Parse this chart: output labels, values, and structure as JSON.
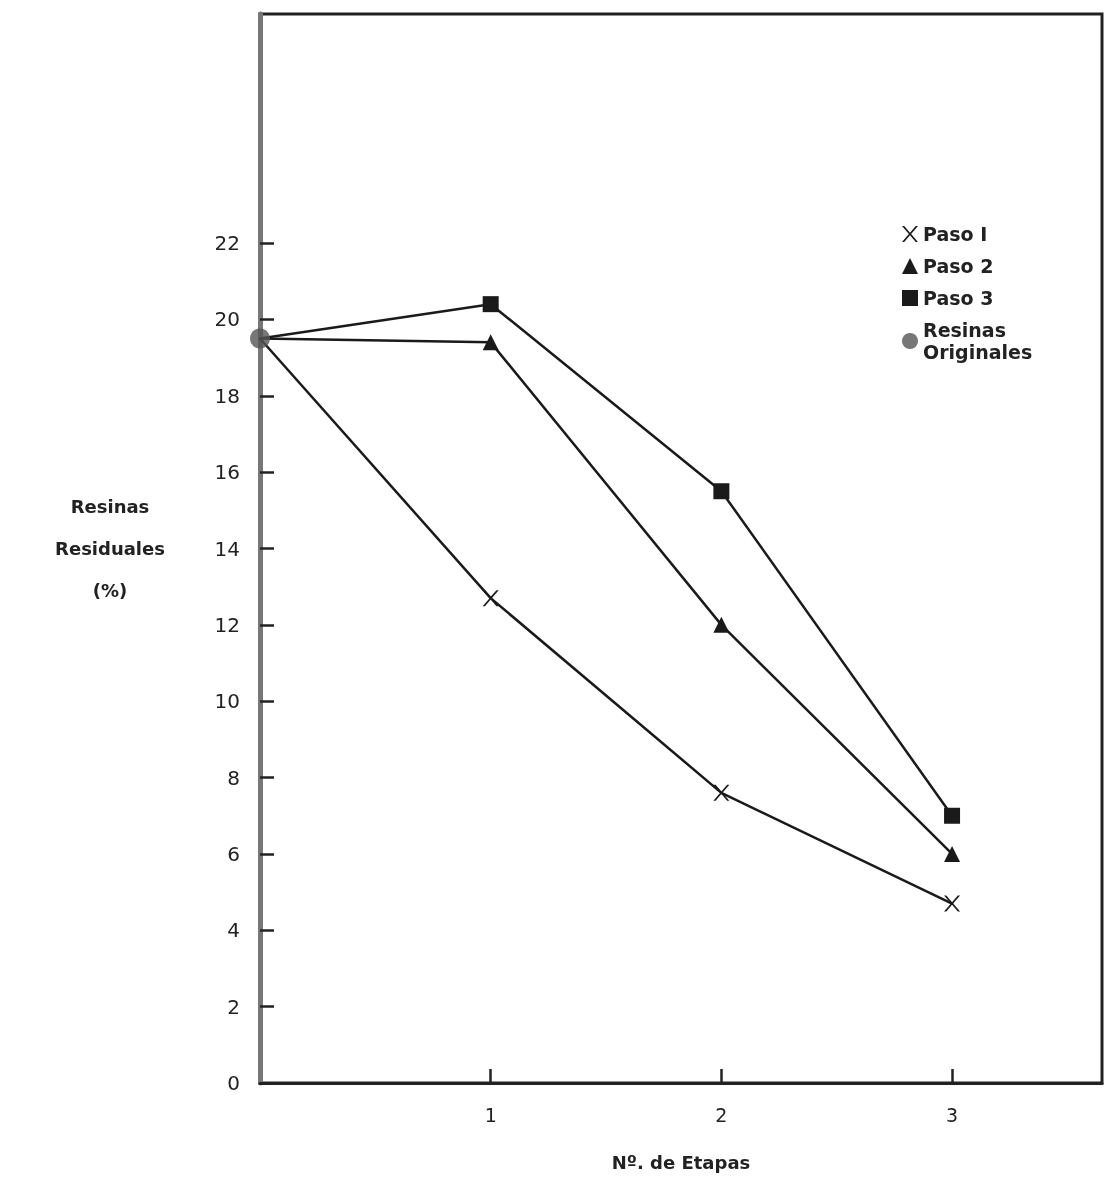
{
  "chart_data": {
    "type": "line",
    "xlabel": "Nº. de Etapas",
    "ylabel": "Resinas Residuales (%)",
    "xlim": [
      0,
      3.65
    ],
    "xticks": [
      1,
      2,
      3
    ],
    "ylim": [
      0,
      28
    ],
    "yticks": [
      0,
      2,
      4,
      6,
      8,
      10,
      12,
      14,
      16,
      18,
      20,
      22
    ],
    "x": [
      0,
      1,
      2,
      3
    ],
    "grid": false,
    "legend": "top right",
    "line_style": "solid",
    "series": [
      {
        "name": "Paso I",
        "color": "#1a1a1a",
        "marker": "cross",
        "values": [
          19.5,
          12.7,
          7.6,
          4.7
        ]
      },
      {
        "name": "Paso 2",
        "color": "#1a1a1a",
        "marker": "triangle",
        "values": [
          19.5,
          19.4,
          12.0,
          6.0
        ]
      },
      {
        "name": "Paso 3",
        "color": "#1a1a1a",
        "marker": "square",
        "values": [
          19.5,
          20.4,
          15.5,
          7.0
        ]
      },
      {
        "name": "Resinas Originales",
        "type": "scatter",
        "color": "#555555",
        "marker": "circle",
        "x": [
          0
        ],
        "values": [
          19.5
        ]
      }
    ]
  }
}
